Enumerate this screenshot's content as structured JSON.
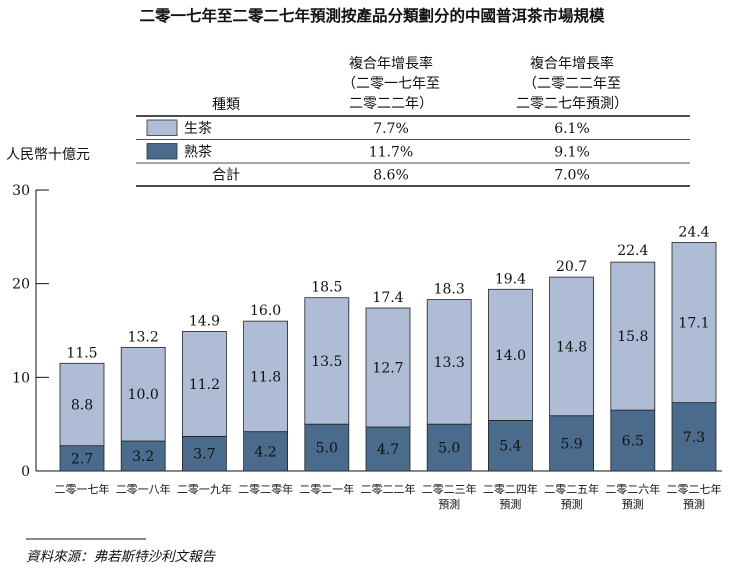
{
  "chart_data": {
    "type": "bar",
    "stacked": true,
    "title": "二零一七年至二零二七年預測按產品分類劃分的中國普洱茶市場規模",
    "ylabel": "人民幣十億元",
    "ylim": [
      0,
      30
    ],
    "yticks": [
      "0",
      "10",
      "20",
      "30"
    ],
    "categories": [
      [
        "二零一七年"
      ],
      [
        "二零一八年"
      ],
      [
        "二零一九年"
      ],
      [
        "二零二零年"
      ],
      [
        "二零二一年"
      ],
      [
        "二零二二年"
      ],
      [
        "二零二三年",
        "預測"
      ],
      [
        "二零二四年",
        "預測"
      ],
      [
        "二零二五年",
        "預測"
      ],
      [
        "二零二六年",
        "預測"
      ],
      [
        "二零二七年",
        "預測"
      ]
    ],
    "series": [
      {
        "name": "熟茶",
        "color": "#4a6b8c",
        "values": [
          2.7,
          3.2,
          3.7,
          4.2,
          5.0,
          4.7,
          5.0,
          5.4,
          5.9,
          6.5,
          7.3
        ],
        "labels": [
          "2.7",
          "3.2",
          "3.7",
          "4.2",
          "5.0",
          "4.7",
          "5.0",
          "5.4",
          "5.9",
          "6.5",
          "7.3"
        ]
      },
      {
        "name": "生茶",
        "color": "#aebcd6",
        "values": [
          8.8,
          10.0,
          11.2,
          11.8,
          13.5,
          12.7,
          13.3,
          14.0,
          14.8,
          15.8,
          17.1
        ],
        "labels": [
          "8.8",
          "10.0",
          "11.2",
          "11.8",
          "13.5",
          "12.7",
          "13.3",
          "14.0",
          "14.8",
          "15.8",
          "17.1"
        ]
      }
    ],
    "totals": [
      11.5,
      13.2,
      14.9,
      16.0,
      18.5,
      17.4,
      18.3,
      19.4,
      20.7,
      22.4,
      24.4
    ],
    "total_labels": [
      "11.5",
      "13.2",
      "14.9",
      "16.0",
      "18.5",
      "17.4",
      "18.3",
      "19.4",
      "20.7",
      "22.4",
      "24.4"
    ],
    "legend_table": {
      "col_header": "種類",
      "cagr1_header": [
        "複合年增長率",
        "（二零一七年至",
        "二零二二年）"
      ],
      "cagr2_header": [
        "複合年增長率",
        "（二零二二年至",
        "二零二七年預測）"
      ],
      "rows": [
        {
          "name": "生茶",
          "swatch": "#aebcd6",
          "cagr1": "7.7%",
          "cagr2": "6.1%"
        },
        {
          "name": "熟茶",
          "swatch": "#4a6b8c",
          "cagr1": "11.7%",
          "cagr2": "9.1%"
        },
        {
          "name": "合計",
          "swatch": null,
          "cagr1": "8.6%",
          "cagr2": "7.0%"
        }
      ]
    },
    "source": "資料來源：弗若斯特沙利文報告"
  }
}
